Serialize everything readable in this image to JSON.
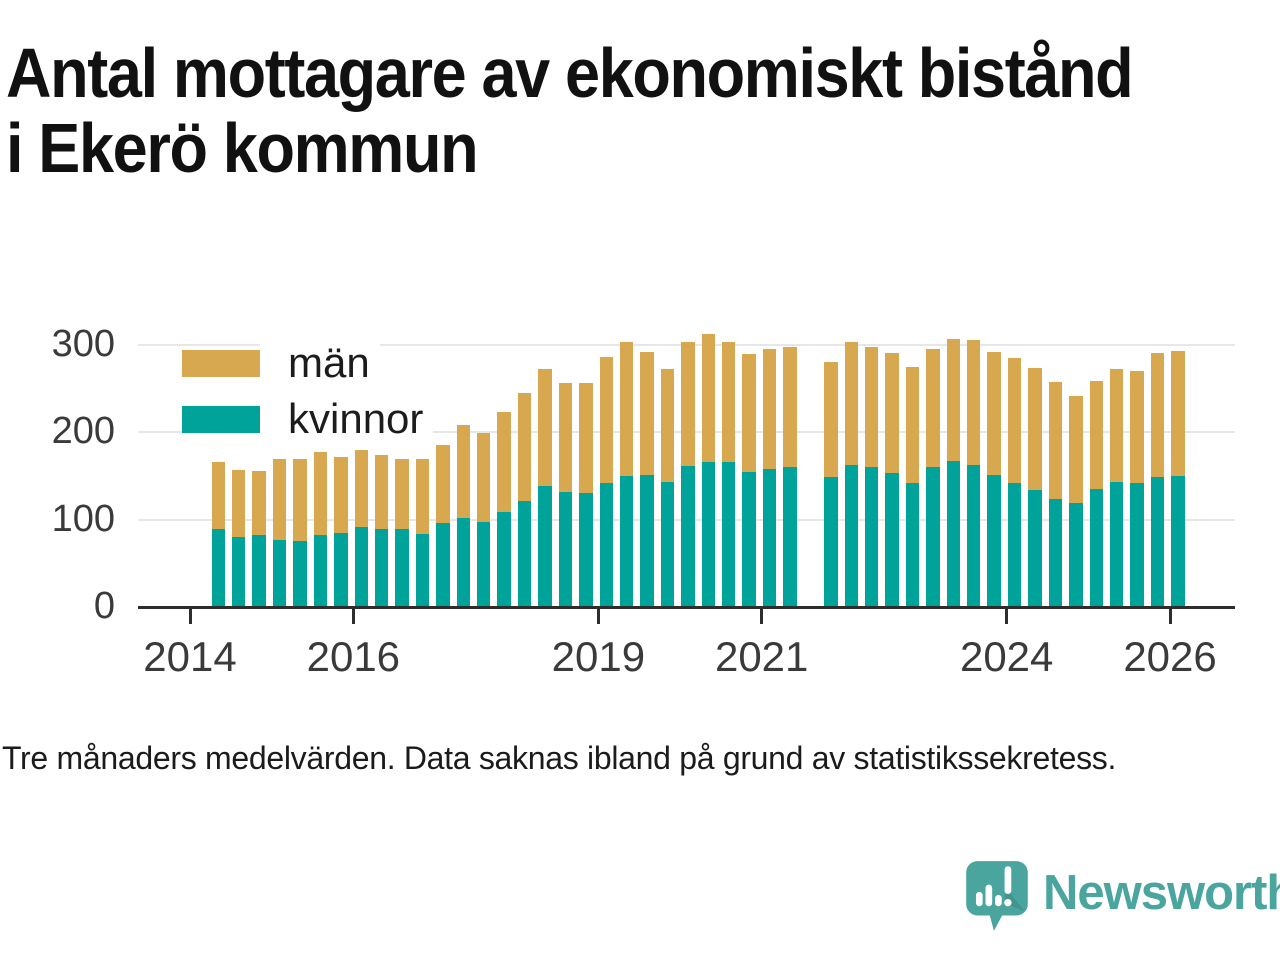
{
  "title": {
    "line1": "Antal mottagare av ekonomiskt bistånd",
    "line2": "i Ekerö kommun"
  },
  "footer_note": "Tre månaders medelvärden. Data saknas ibland på grund av statistikssekretess.",
  "branding": {
    "name": "Newsworthy"
  },
  "colors": {
    "men": "#d8a850",
    "women": "#00a39a",
    "axis": "#2d2d2d",
    "grid": "#e7e7e7",
    "brand_teal": "#4aa59e"
  },
  "legend": [
    {
      "label": "män",
      "color_key": "men"
    },
    {
      "label": "kvinnor",
      "color_key": "women"
    }
  ],
  "chart_data": {
    "type": "bar",
    "stacked": true,
    "title": "Antal mottagare av ekonomiskt bistånd i Ekerö kommun",
    "xlabel": "",
    "ylabel": "",
    "ylim": [
      0,
      320
    ],
    "y_ticks": [
      0,
      100,
      200,
      300
    ],
    "x_ticks": [
      2014,
      2016,
      2019,
      2021,
      2024,
      2026
    ],
    "grid": true,
    "legend_position": "top-left",
    "missing_data_note": "2021 Q3 saknas",
    "categories": [
      "2014 Q2",
      "2014 Q3",
      "2014 Q4",
      "2015 Q1",
      "2015 Q2",
      "2015 Q3",
      "2015 Q4",
      "2016 Q1",
      "2016 Q2",
      "2016 Q3",
      "2016 Q4",
      "2017 Q1",
      "2017 Q2",
      "2017 Q3",
      "2017 Q4",
      "2018 Q1",
      "2018 Q2",
      "2018 Q3",
      "2018 Q4",
      "2019 Q1",
      "2019 Q2",
      "2019 Q3",
      "2019 Q4",
      "2020 Q1",
      "2020 Q2",
      "2020 Q3",
      "2020 Q4",
      "2021 Q1",
      "2021 Q2",
      "2021 Q3",
      "2021 Q4",
      "2022 Q1",
      "2022 Q2",
      "2022 Q3",
      "2022 Q4",
      "2023 Q1",
      "2023 Q2",
      "2023 Q3",
      "2023 Q4",
      "2024 Q1",
      "2024 Q2",
      "2024 Q3",
      "2024 Q4",
      "2025 Q1",
      "2025 Q2",
      "2025 Q3",
      "2025 Q4",
      "2026 Q1"
    ],
    "series": [
      {
        "name": "kvinnor",
        "values": [
          89,
          80,
          82,
          77,
          76,
          82,
          85,
          92,
          89,
          89,
          84,
          96,
          102,
          97,
          109,
          121,
          139,
          132,
          130,
          142,
          150,
          151,
          143,
          161,
          166,
          166,
          155,
          158,
          160,
          null,
          149,
          163,
          160,
          153,
          142,
          160,
          167,
          163,
          151,
          142,
          134,
          124,
          119,
          135,
          143,
          142,
          149,
          150
        ]
      },
      {
        "name": "män",
        "values": [
          77,
          77,
          74,
          93,
          93,
          96,
          87,
          88,
          85,
          81,
          86,
          90,
          106,
          102,
          114,
          124,
          134,
          125,
          127,
          144,
          154,
          141,
          129,
          142,
          147,
          138,
          135,
          138,
          138,
          null,
          131,
          140,
          138,
          138,
          133,
          135,
          140,
          143,
          141,
          143,
          140,
          134,
          123,
          124,
          129,
          128,
          142,
          143
        ]
      }
    ]
  }
}
